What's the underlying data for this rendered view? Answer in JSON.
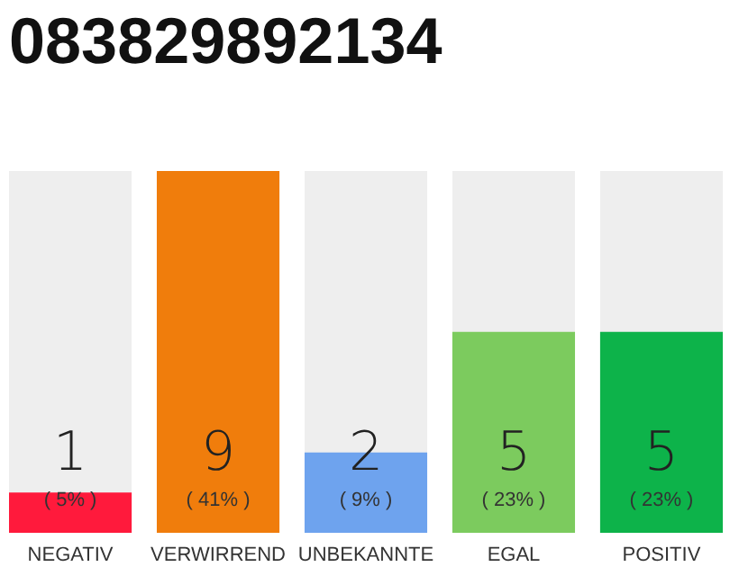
{
  "chart_data": {
    "type": "bar",
    "title": "083829892134",
    "categories": [
      "NEGATIV",
      "VERWIRREND",
      "UNBEKANNTE",
      "EGAL",
      "POSITIV"
    ],
    "values": [
      1,
      9,
      2,
      5,
      5
    ],
    "colors": [
      "#ff1a3c",
      "#f07d0c",
      "#6ea3ee",
      "#7ccb5e",
      "#0db34a"
    ],
    "data_labels": true,
    "annotations": [
      "( 5% )",
      "( 41% )",
      "( 9% )",
      "( 23% )",
      "( 23% )"
    ]
  }
}
